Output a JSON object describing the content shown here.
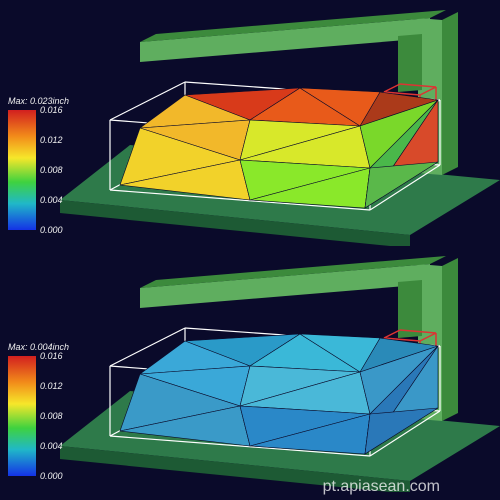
{
  "watermark": "pt.apiasean.com",
  "colorscale": {
    "stops": [
      {
        "offset": 0.0,
        "color": "#d21f1f"
      },
      {
        "offset": 0.22,
        "color": "#f28c1a"
      },
      {
        "offset": 0.4,
        "color": "#f6e72a"
      },
      {
        "offset": 0.6,
        "color": "#3fd23f"
      },
      {
        "offset": 0.78,
        "color": "#20b8c8"
      },
      {
        "offset": 1.0,
        "color": "#1432e6"
      }
    ],
    "ticks": [
      {
        "label": "0.016",
        "pos": 0.0
      },
      {
        "label": "0.012",
        "pos": 0.25
      },
      {
        "label": "0.008",
        "pos": 0.5
      },
      {
        "label": "0.004",
        "pos": 0.75
      },
      {
        "label": "0.000",
        "pos": 1.0
      }
    ]
  },
  "machine": {
    "base_color": "#2e7a4a",
    "base_shade": "#1d5a34",
    "beam_color": "#5fae5f",
    "beam_shade": "#3c8a3c",
    "wire_color": "#ffffff",
    "vol_outline": "#dd3333"
  },
  "panels": [
    {
      "max_label": "Max: 0.023inch",
      "mesh_colors": {
        "top_left": "#d83a1a",
        "top_mid": "#e85a1a",
        "top_right": "#ab3a1a",
        "mid_left": "#f2b82a",
        "mid_mid": "#d8e82a",
        "mid_right": "#7ad82a",
        "front_left": "#f2d22a",
        "front_mid": "#8ae82a",
        "front_right": "#4ab84a",
        "side_top": "#d84a2a",
        "side_bot": "#5ab84a"
      }
    },
    {
      "max_label": "Max: 0.004inch",
      "mesh_colors": {
        "top_left": "#2a9ac8",
        "top_mid": "#3ab8d8",
        "top_right": "#2a8ab8",
        "mid_left": "#3aa8d8",
        "mid_mid": "#4ab8d8",
        "mid_right": "#3a98c8",
        "front_left": "#3a9ac8",
        "front_mid": "#2a88c8",
        "front_right": "#2a78b8",
        "side_top": "#3a98c8",
        "side_bot": "#2a78b8"
      }
    }
  ]
}
